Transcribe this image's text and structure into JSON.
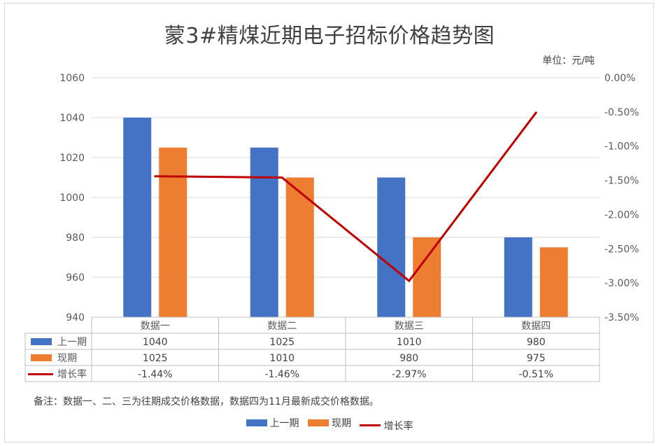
{
  "chart_data": {
    "type": "bar",
    "title": "蒙3#精煤近期电子招标价格趋势图",
    "unit": "单位：元/吨",
    "categories": [
      "数据一",
      "数据二",
      "数据三",
      "数据四"
    ],
    "series": [
      {
        "name": "上一期",
        "type": "bar",
        "axis": "left",
        "color": "#4472c4",
        "values": [
          1040,
          1025,
          1010,
          980
        ]
      },
      {
        "name": "现期",
        "type": "bar",
        "axis": "left",
        "color": "#ed7d31",
        "values": [
          1025,
          1010,
          980,
          975
        ]
      },
      {
        "name": "增长率",
        "type": "line",
        "axis": "right",
        "color": "#c00000",
        "values": [
          -1.44,
          -1.46,
          -2.97,
          -0.51
        ]
      }
    ],
    "table_rows": [
      [
        "1040",
        "1025",
        "1010",
        "980"
      ],
      [
        "1025",
        "1010",
        "980",
        "975"
      ],
      [
        "-1.44%",
        "-1.46%",
        "-2.97%",
        "-0.51%"
      ]
    ],
    "left_axis": {
      "min": 940,
      "max": 1060,
      "ticks": [
        "940",
        "960",
        "980",
        "1000",
        "1020",
        "1040",
        "1060"
      ]
    },
    "right_axis": {
      "min": -3.5,
      "max": 0,
      "ticks": [
        "-3.50%",
        "-3.00%",
        "-2.50%",
        "-2.00%",
        "-1.50%",
        "-1.00%",
        "-0.50%",
        "0.00%"
      ]
    },
    "grid": true,
    "legend_position": "bottom",
    "note": "备注：数据一、二、三为往期成交价格数据，数据四为11月最新成交价格数据。"
  }
}
